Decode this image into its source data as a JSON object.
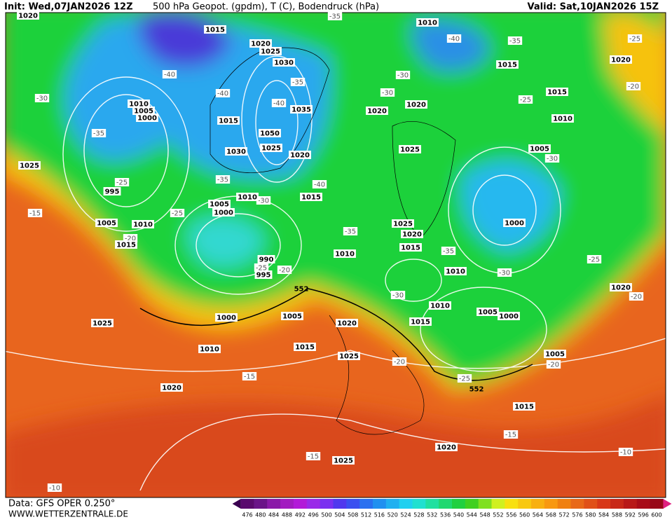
{
  "header": {
    "init": "Init: Wed,07JAN2026 12Z",
    "title": "500 hPa Geopot. (gpdm), T (C), Bodendruck (hPa)",
    "valid": "Valid: Sat,10JAN2026 15Z"
  },
  "footer": {
    "source": "Data: GFS OPER 0.250°",
    "site": "WWW.WETTERZENTRALE.DE"
  },
  "pressure_labels": [
    1020,
    1015,
    1010,
    1020,
    1025,
    1030,
    1035,
    1010,
    1005,
    1000,
    1015,
    1050,
    1030,
    1025,
    1020,
    1020,
    1020,
    1015,
    1015,
    1010,
    1005,
    1025,
    1020,
    1025,
    995,
    1015,
    1010,
    1005,
    1000,
    1005,
    1010,
    1015,
    1025,
    1020,
    1015,
    1000,
    1010,
    990,
    995,
    1010,
    1010,
    1005,
    1000,
    1015,
    1000,
    1005,
    1020,
    1025,
    1010,
    1015,
    1025,
    1005,
    1020,
    1020,
    1015,
    1020,
    1025
  ],
  "temperature_labels": [
    -35,
    -40,
    -35,
    -25,
    -40,
    -40,
    -35,
    -40,
    -30,
    -30,
    -25,
    -20,
    -30,
    -35,
    -30,
    -25,
    -35,
    -40,
    -30,
    -15,
    -25,
    -35,
    -20,
    -35,
    -30,
    -25,
    -25,
    -20,
    -30,
    -20,
    -20,
    -20,
    -25,
    -15,
    -15,
    -15,
    -10,
    -10
  ],
  "contour_labels": [
    552,
    552
  ],
  "colorbar": {
    "labels": [
      476,
      480,
      484,
      488,
      492,
      496,
      500,
      504,
      508,
      512,
      516,
      520,
      524,
      528,
      532,
      536,
      540,
      544,
      548,
      552,
      556,
      560,
      564,
      568,
      572,
      576,
      580,
      584,
      588,
      592,
      596,
      600
    ]
  }
}
